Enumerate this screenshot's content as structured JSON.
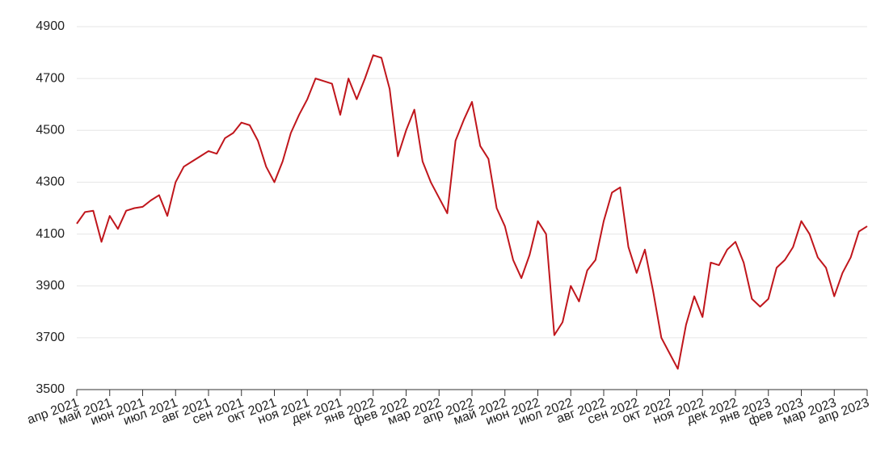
{
  "chart_data": {
    "type": "line",
    "x": [
      0,
      0.25,
      0.5,
      0.75,
      1,
      1.25,
      1.5,
      1.75,
      2,
      2.25,
      2.5,
      2.75,
      3,
      3.25,
      3.5,
      3.75,
      4,
      4.25,
      4.5,
      4.75,
      5,
      5.25,
      5.5,
      5.75,
      6,
      6.25,
      6.5,
      6.75,
      7,
      7.25,
      7.5,
      7.75,
      8,
      8.25,
      8.5,
      8.75,
      9,
      9.25,
      9.5,
      9.75,
      10,
      10.25,
      10.5,
      10.75,
      11,
      11.25,
      11.5,
      11.75,
      12,
      12.25,
      12.5,
      12.75,
      13,
      13.25,
      13.5,
      13.75,
      14,
      14.25,
      14.5,
      14.75,
      15,
      15.25,
      15.5,
      15.75,
      16,
      16.25,
      16.5,
      16.75,
      17,
      17.25,
      17.5,
      17.75,
      18,
      18.25,
      18.5,
      18.75,
      19,
      19.25,
      19.5,
      19.75,
      20,
      20.25,
      20.5,
      20.75,
      21,
      21.25,
      21.5,
      21.75,
      22,
      22.25,
      22.5,
      22.75,
      23,
      23.25,
      23.5,
      23.75,
      24
    ],
    "series": [
      {
        "color": "#c0161c",
        "values": [
          4140,
          4185,
          4190,
          4070,
          4170,
          4120,
          4190,
          4200,
          4205,
          4230,
          4250,
          4170,
          4300,
          4360,
          4380,
          4400,
          4420,
          4410,
          4470,
          4490,
          4530,
          4520,
          4460,
          4360,
          4300,
          4380,
          4490,
          4560,
          4620,
          4700,
          4690,
          4680,
          4560,
          4700,
          4620,
          4700,
          4790,
          4780,
          4660,
          4400,
          4500,
          4580,
          4380,
          4300,
          4240,
          4180,
          4460,
          4540,
          4610,
          4440,
          4390,
          4200,
          4130,
          4000,
          3930,
          4020,
          4150,
          4100,
          3710,
          3760,
          3900,
          3840,
          3960,
          4000,
          4150,
          4260,
          4280,
          4050,
          3950,
          4040,
          3880,
          3700,
          3640,
          3580,
          3750,
          3860,
          3780,
          3990,
          3980,
          4040,
          4070,
          3990,
          3850,
          3820,
          3850,
          3970,
          4000,
          4050,
          4150,
          4100,
          4010,
          3970,
          3860,
          3950,
          4010,
          4110,
          4130
        ]
      }
    ],
    "xlim": [
      0,
      24
    ],
    "xticks": [
      {
        "value": 0,
        "label": "апр 2021"
      },
      {
        "value": 1,
        "label": "май 2021"
      },
      {
        "value": 2,
        "label": "июн 2021"
      },
      {
        "value": 3,
        "label": "июл 2021"
      },
      {
        "value": 4,
        "label": "авг 2021"
      },
      {
        "value": 5,
        "label": "сен 2021"
      },
      {
        "value": 6,
        "label": "окт 2021"
      },
      {
        "value": 7,
        "label": "ноя 2021"
      },
      {
        "value": 8,
        "label": "дек 2021"
      },
      {
        "value": 9,
        "label": "янв 2022"
      },
      {
        "value": 10,
        "label": "фев 2022"
      },
      {
        "value": 11,
        "label": "мар 2022"
      },
      {
        "value": 12,
        "label": "апр 2022"
      },
      {
        "value": 13,
        "label": "май 2022"
      },
      {
        "value": 14,
        "label": "июн 2022"
      },
      {
        "value": 15,
        "label": "июл 2022"
      },
      {
        "value": 16,
        "label": "авг 2022"
      },
      {
        "value": 17,
        "label": "сен 2022"
      },
      {
        "value": 18,
        "label": "окт 2022"
      },
      {
        "value": 19,
        "label": "ноя 2022"
      },
      {
        "value": 20,
        "label": "дек 2022"
      },
      {
        "value": 21,
        "label": "янв 2023"
      },
      {
        "value": 22,
        "label": "фев 2023"
      },
      {
        "value": 23,
        "label": "мар 2023"
      },
      {
        "value": 24,
        "label": "апр 2023"
      }
    ],
    "ylim": [
      3500,
      4900
    ],
    "yticks": [
      3500,
      3700,
      3900,
      4100,
      4300,
      4500,
      4700,
      4900
    ],
    "grid": true
  }
}
